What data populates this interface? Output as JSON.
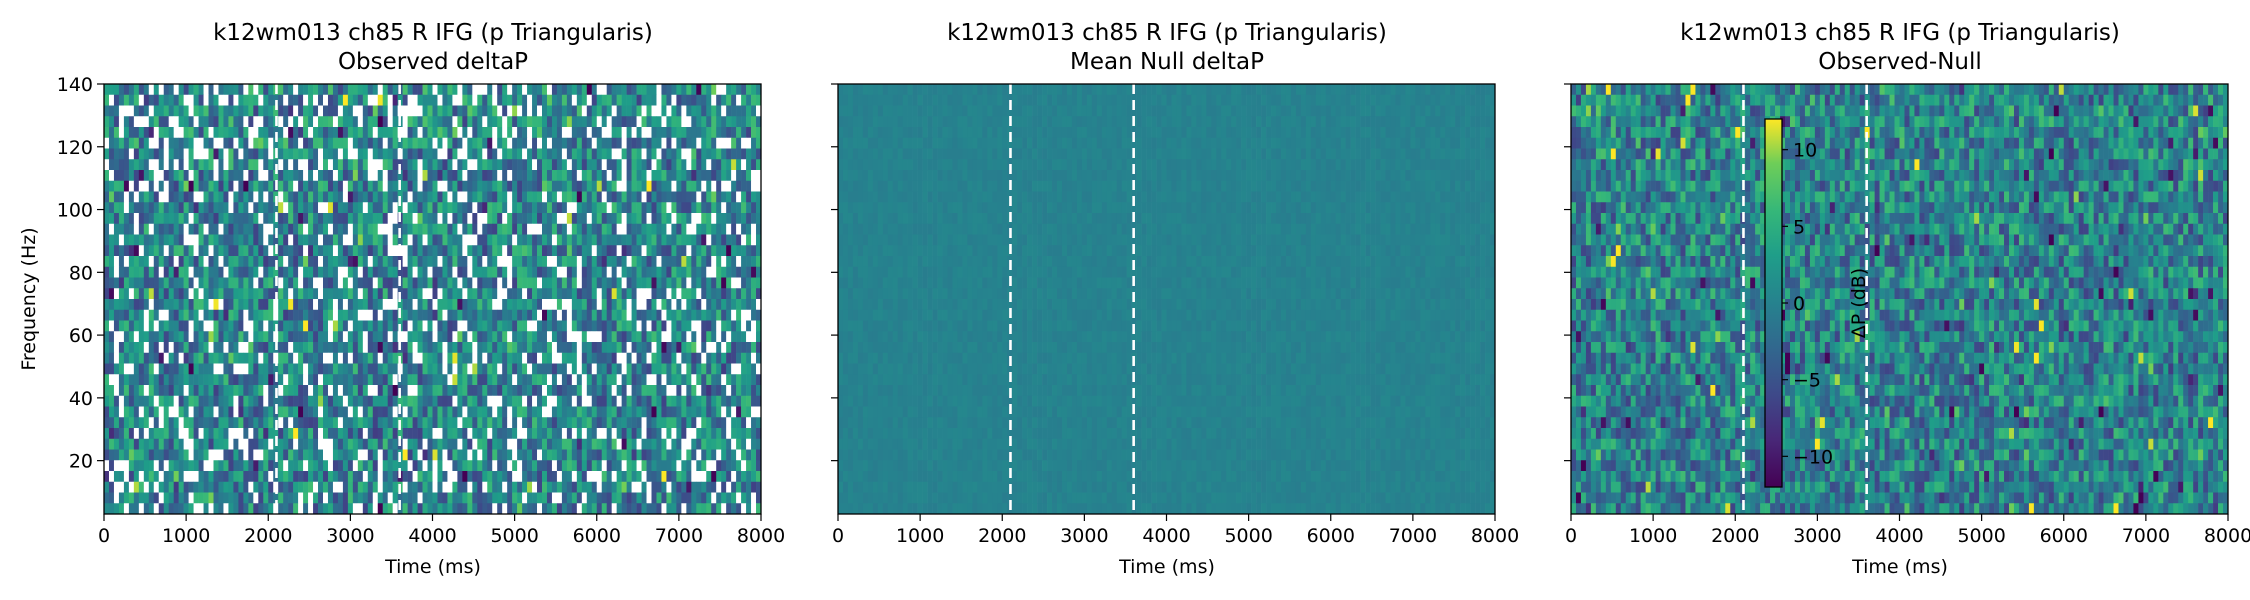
{
  "chart_data": [
    {
      "type": "heatmap",
      "title": "k12wm013 ch85 R IFG (p Triangularis)",
      "subtitle": "Observed deltaP",
      "xlabel": "Time (ms)",
      "ylabel": "Frequency (Hz)",
      "xlim": [
        0,
        8000
      ],
      "ylim": [
        3,
        140
      ],
      "xticks": [
        0,
        1000,
        2000,
        3000,
        4000,
        5000,
        6000,
        7000,
        8000
      ],
      "yticks": [
        20,
        40,
        60,
        80,
        100,
        120,
        140
      ],
      "event_lines_ms": [
        2100,
        3600
      ],
      "colormap": "viridis",
      "masked_cells": "white (non-significant bins)"
    },
    {
      "type": "heatmap",
      "title": "k12wm013 ch85 R IFG (p Triangularis)",
      "subtitle": "Mean Null deltaP",
      "xlabel": "Time (ms)",
      "ylabel": "",
      "xlim": [
        0,
        8000
      ],
      "ylim": [
        3,
        140
      ],
      "xticks": [
        0,
        1000,
        2000,
        3000,
        4000,
        5000,
        6000,
        7000,
        8000
      ],
      "yticks": [
        20,
        40,
        60,
        80,
        100,
        120,
        140
      ],
      "event_lines_ms": [
        2100,
        3600
      ],
      "colormap": "viridis",
      "approx_value_db": 0
    },
    {
      "type": "heatmap",
      "title": "k12wm013 ch85 R IFG (p Triangularis)",
      "subtitle": "Observed-Null",
      "xlabel": "Time (ms)",
      "ylabel": "",
      "xlim": [
        0,
        8000
      ],
      "ylim": [
        3,
        140
      ],
      "xticks": [
        0,
        1000,
        2000,
        3000,
        4000,
        5000,
        6000,
        7000,
        8000
      ],
      "yticks": [
        20,
        40,
        60,
        80,
        100,
        120,
        140
      ],
      "event_lines_ms": [
        2100,
        3600
      ],
      "colormap": "viridis",
      "colorbar": {
        "label": "ΔP (dB)",
        "vmin": -12,
        "vmax": 12,
        "ticks": [
          -10,
          -5,
          0,
          5,
          10
        ],
        "tick_labels": [
          "−10",
          "−5",
          "0",
          "5",
          "10"
        ]
      }
    }
  ]
}
